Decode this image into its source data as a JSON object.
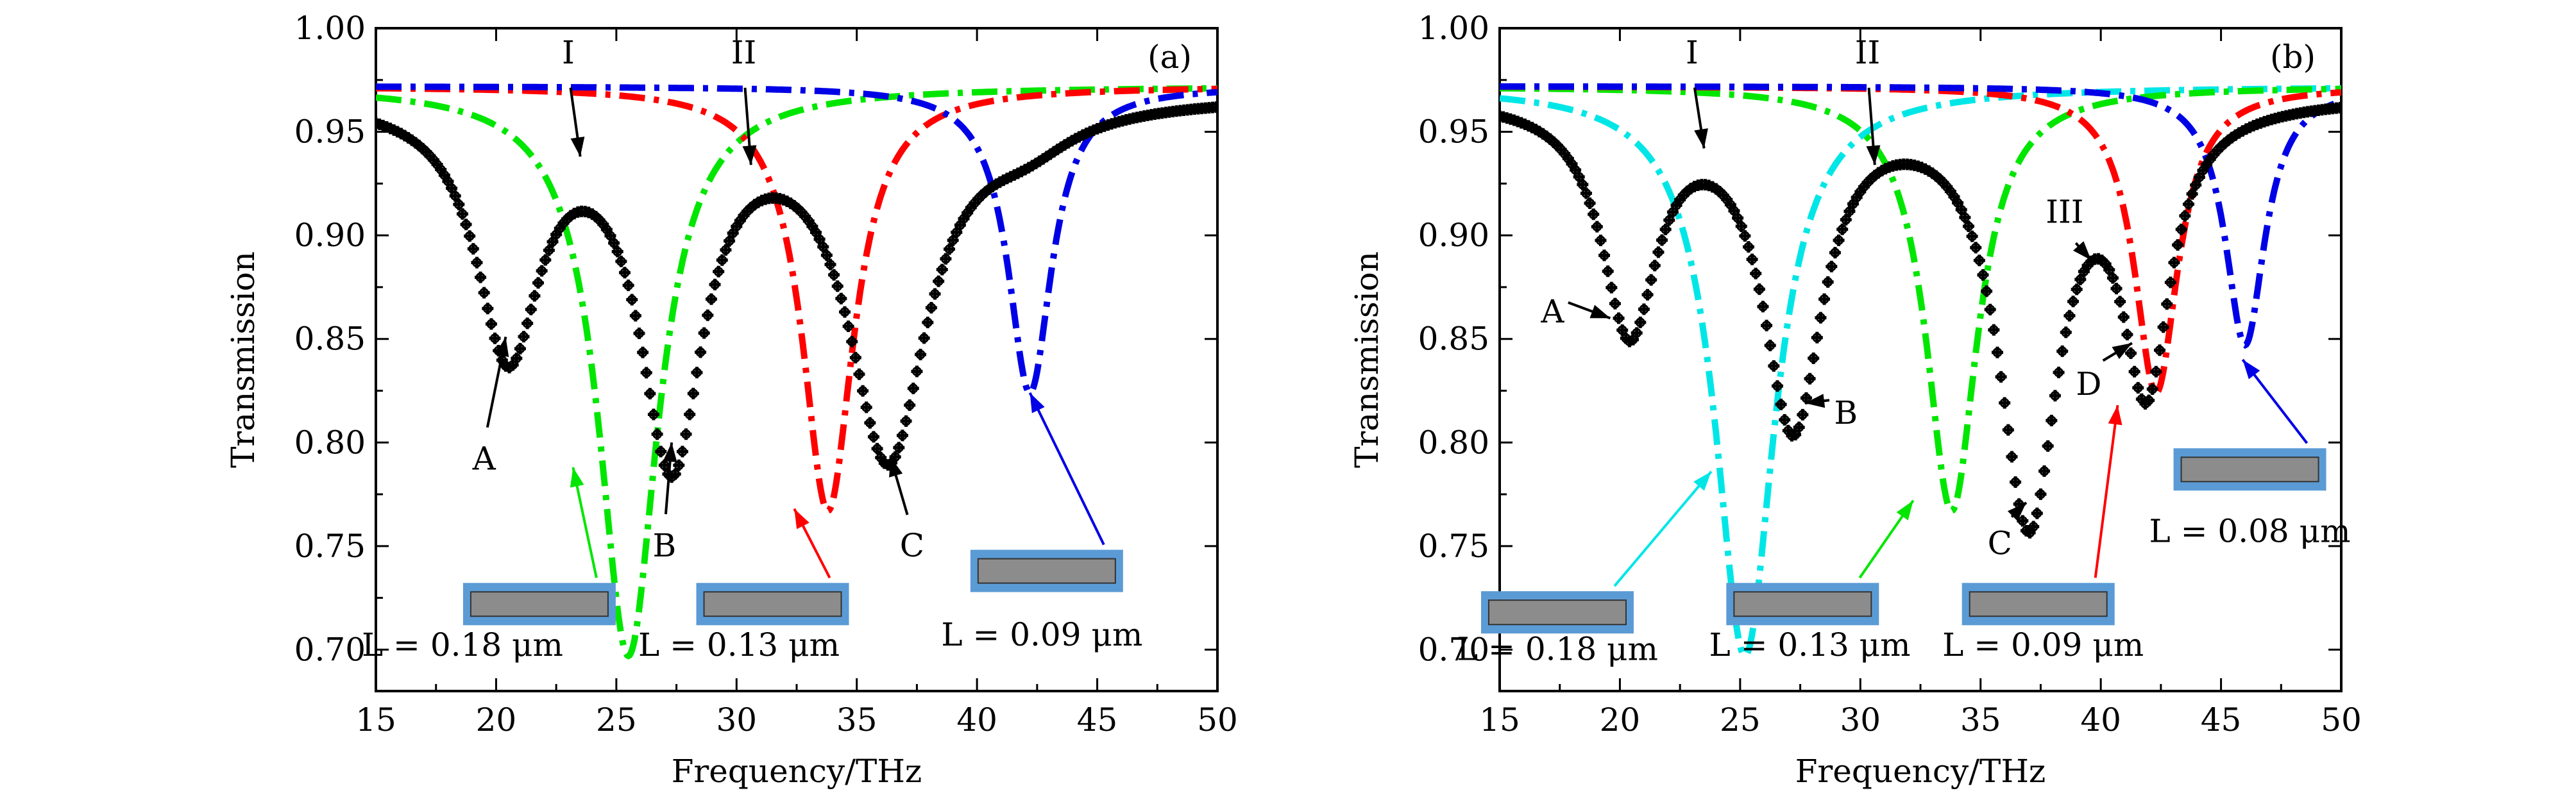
{
  "chart_data": [
    {
      "type": "line",
      "panel": "(a)",
      "xlabel": "Frequency/THz",
      "ylabel": "Transmission",
      "xlim": [
        15,
        50
      ],
      "ylim": [
        0.68,
        1.0
      ],
      "x_ticks": [
        "15",
        "20",
        "25",
        "30",
        "35",
        "40",
        "45",
        "50"
      ],
      "y_ticks": [
        "0.70",
        "0.75",
        "0.80",
        "0.85",
        "0.90",
        "0.95",
        "1.00"
      ],
      "series": [
        {
          "name": "black-markers",
          "color": "#000000",
          "style": "markers",
          "baseline": 0.968,
          "dips": [
            {
              "f": 20.5,
              "depth": 0.12,
              "width": 1.6
            },
            {
              "f": 27.3,
              "depth": 0.17,
              "width": 1.6
            },
            {
              "f": 36.3,
              "depth": 0.17,
              "width": 2.0
            },
            {
              "f": 42.0,
              "depth": 0.015,
              "width": 2.5
            }
          ]
        },
        {
          "name": "L = 0.18 μm",
          "color": "#00e600",
          "style": "dashdot",
          "baseline": 0.972,
          "dips": [
            {
              "f": 25.5,
              "depth": 0.275,
              "width": 1.5
            }
          ]
        },
        {
          "name": "L = 0.13 μm",
          "color": "#ff0000",
          "style": "dashdot",
          "baseline": 0.972,
          "dips": [
            {
              "f": 33.8,
              "depth": 0.205,
              "width": 1.3
            }
          ]
        },
        {
          "name": "L = 0.09 μm",
          "color": "#0000e6",
          "style": "dashdot",
          "baseline": 0.972,
          "dips": [
            {
              "f": 42.2,
              "depth": 0.148,
              "width": 1.1
            }
          ]
        }
      ],
      "annotations": [
        {
          "text": "I",
          "tx": 23.0,
          "ty": 0.983,
          "ax": 23.5,
          "ay": 0.938,
          "color": "#000000"
        },
        {
          "text": "II",
          "tx": 30.3,
          "ty": 0.983,
          "ax": 30.6,
          "ay": 0.934,
          "color": "#000000"
        },
        {
          "text": "A",
          "tx": 19.5,
          "ty": 0.787,
          "ax": 20.4,
          "ay": 0.851,
          "color": "#000000"
        },
        {
          "text": "B",
          "tx": 27.0,
          "ty": 0.745,
          "ax": 27.3,
          "ay": 0.8,
          "color": "#000000"
        },
        {
          "text": "C",
          "tx": 37.3,
          "ty": 0.745,
          "ax": 36.4,
          "ay": 0.793,
          "color": "#000000"
        }
      ],
      "insets": [
        {
          "label": "L = 0.18 μm",
          "box_f": 21.8,
          "box_t": 0.722,
          "label_f": 18.6,
          "label_t": 0.697,
          "arrow_to_f": 23.2,
          "arrow_to_t": 0.788,
          "color": "#00e600"
        },
        {
          "label": "L = 0.13 μm",
          "box_f": 31.5,
          "box_t": 0.722,
          "label_f": 30.1,
          "label_t": 0.697,
          "arrow_to_f": 32.4,
          "arrow_to_t": 0.768,
          "color": "#ff0000"
        },
        {
          "label": "L = 0.09 μm",
          "box_f": 42.9,
          "box_t": 0.738,
          "label_f": 42.7,
          "label_t": 0.702,
          "arrow_to_f": 42.2,
          "arrow_to_t": 0.824,
          "color": "#0000e6"
        }
      ]
    },
    {
      "type": "line",
      "panel": "(b)",
      "xlabel": "Frequency/THz",
      "ylabel": "Transmission",
      "xlim": [
        15,
        50
      ],
      "ylim": [
        0.68,
        1.0
      ],
      "x_ticks": [
        "15",
        "20",
        "25",
        "30",
        "35",
        "40",
        "45",
        "50"
      ],
      "y_ticks": [
        "0.70",
        "0.75",
        "0.80",
        "0.85",
        "0.90",
        "0.95",
        "1.00"
      ],
      "series": [
        {
          "name": "black-markers",
          "color": "#000000",
          "style": "markers",
          "baseline": 0.968,
          "dips": [
            {
              "f": 20.4,
              "depth": 0.11,
              "width": 1.4
            },
            {
              "f": 27.2,
              "depth": 0.155,
              "width": 1.5
            },
            {
              "f": 37.0,
              "depth": 0.2,
              "width": 1.5
            },
            {
              "f": 41.9,
              "depth": 0.13,
              "width": 1.2
            }
          ]
        },
        {
          "name": "L = 0.18 μm",
          "color": "#00e6e6",
          "style": "dashdot",
          "baseline": 0.972,
          "dips": [
            {
              "f": 25.2,
              "depth": 0.275,
              "width": 1.5
            }
          ]
        },
        {
          "name": "L = 0.13 μm",
          "color": "#00e600",
          "style": "dashdot",
          "baseline": 0.972,
          "dips": [
            {
              "f": 33.8,
              "depth": 0.205,
              "width": 1.3
            }
          ]
        },
        {
          "name": "L = 0.09 μm",
          "color": "#ff0000",
          "style": "dashdot",
          "baseline": 0.972,
          "dips": [
            {
              "f": 42.3,
              "depth": 0.148,
              "width": 1.1
            }
          ]
        },
        {
          "name": "L = 0.08 μm",
          "color": "#0000e6",
          "style": "dashdot",
          "baseline": 0.972,
          "dips": [
            {
              "f": 46.0,
              "depth": 0.125,
              "width": 1.0
            }
          ]
        }
      ],
      "annotations": [
        {
          "text": "I",
          "tx": 23.0,
          "ty": 0.983,
          "ax": 23.5,
          "ay": 0.942,
          "color": "#000000"
        },
        {
          "text": "II",
          "tx": 30.3,
          "ty": 0.983,
          "ax": 30.6,
          "ay": 0.934,
          "color": "#000000"
        },
        {
          "text": "III",
          "tx": 38.5,
          "ty": 0.906,
          "ax": 39.6,
          "ay": 0.888,
          "color": "#000000"
        },
        {
          "text": "A",
          "tx": 17.2,
          "ty": 0.858,
          "ax": 19.6,
          "ay": 0.86,
          "color": "#000000"
        },
        {
          "text": "B",
          "tx": 29.4,
          "ty": 0.809,
          "ax": 27.7,
          "ay": 0.819,
          "color": "#000000"
        },
        {
          "text": "C",
          "tx": 35.8,
          "ty": 0.746,
          "ax": 36.9,
          "ay": 0.771,
          "color": "#000000"
        },
        {
          "text": "D",
          "tx": 39.5,
          "ty": 0.823,
          "ax": 41.3,
          "ay": 0.848,
          "color": "#000000"
        }
      ],
      "insets": [
        {
          "label": "L = 0.18 μm",
          "box_f": 17.4,
          "box_t": 0.718,
          "label_f": 17.4,
          "label_t": 0.695,
          "arrow_to_f": 23.8,
          "arrow_to_t": 0.786,
          "color": "#00e6e6"
        },
        {
          "label": "L = 0.13 μm",
          "box_f": 27.6,
          "box_t": 0.722,
          "label_f": 27.9,
          "label_t": 0.697,
          "arrow_to_f": 32.2,
          "arrow_to_t": 0.772,
          "color": "#00e600"
        },
        {
          "label": "L = 0.09 μm",
          "box_f": 37.4,
          "box_t": 0.722,
          "label_f": 37.6,
          "label_t": 0.697,
          "arrow_to_f": 40.7,
          "arrow_to_t": 0.818,
          "color": "#ff0000"
        },
        {
          "label": "L = 0.08 μm",
          "box_f": 46.2,
          "box_t": 0.787,
          "label_f": 46.2,
          "label_t": 0.752,
          "arrow_to_f": 45.9,
          "arrow_to_t": 0.84,
          "color": "#0000e6"
        }
      ]
    }
  ]
}
